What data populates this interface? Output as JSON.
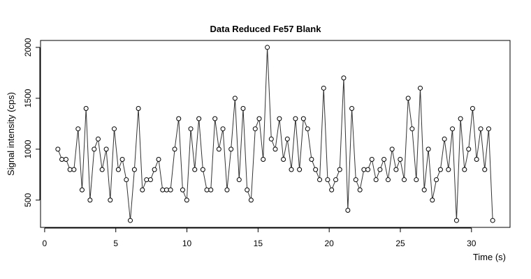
{
  "chart_data": {
    "type": "line",
    "title": "Data Reduced Fe57 Blank",
    "x_label": "Time (s)",
    "y_label": "Signal intensity (cps)",
    "x": [
      0.93,
      1.21,
      1.5,
      1.78,
      2.06,
      2.35,
      2.63,
      2.91,
      3.19,
      3.48,
      3.76,
      4.04,
      4.33,
      4.61,
      4.89,
      5.18,
      5.46,
      5.74,
      6.02,
      6.31,
      6.59,
      6.87,
      7.16,
      7.44,
      7.72,
      8.01,
      8.29,
      8.57,
      8.85,
      9.14,
      9.42,
      9.7,
      9.99,
      10.27,
      10.55,
      10.84,
      11.12,
      11.4,
      11.68,
      11.97,
      12.25,
      12.53,
      12.82,
      13.1,
      13.38,
      13.67,
      13.95,
      14.23,
      14.51,
      14.8,
      15.08,
      15.36,
      15.65,
      15.93,
      16.21,
      16.5,
      16.78,
      17.06,
      17.34,
      17.63,
      17.91,
      18.19,
      18.48,
      18.76,
      19.04,
      19.33,
      19.61,
      19.89,
      20.17,
      20.46,
      20.74,
      21.02,
      21.31,
      21.59,
      21.87,
      22.16,
      22.44,
      22.72,
      23,
      23.29,
      23.57,
      23.85,
      24.14,
      24.42,
      24.7,
      24.99,
      25.27,
      25.55,
      25.83,
      26.12,
      26.4,
      26.68,
      26.97,
      27.25,
      27.53,
      27.82,
      28.1,
      28.38,
      28.66,
      28.95,
      29.23,
      29.51,
      29.8,
      30.08,
      30.36,
      30.65,
      30.93,
      31.21,
      31.49
    ],
    "values": [
      1000,
      900,
      900,
      800,
      800,
      1200,
      600,
      1400,
      500,
      1000,
      1100,
      800,
      1000,
      500,
      1200,
      800,
      900,
      700,
      300,
      800,
      1400,
      600,
      700,
      700,
      800,
      900,
      600,
      600,
      600,
      1000,
      1300,
      600,
      500,
      1200,
      800,
      1300,
      800,
      600,
      600,
      1300,
      1000,
      1200,
      600,
      1000,
      1500,
      700,
      1400,
      600,
      500,
      1200,
      1300,
      900,
      2000,
      1100,
      1000,
      1300,
      900,
      1100,
      800,
      1300,
      800,
      1300,
      1200,
      900,
      800,
      700,
      1600,
      700,
      600,
      700,
      800,
      1700,
      400,
      1400,
      700,
      600,
      800,
      800,
      900,
      700,
      800,
      900,
      700,
      1000,
      800,
      900,
      700,
      1500,
      1200,
      700,
      1600,
      600,
      1000,
      500,
      700,
      800,
      1100,
      800,
      1200,
      300,
      1300,
      800,
      1000,
      1400,
      900,
      1200,
      800,
      1200,
      300
    ],
    "color": "#333333",
    "marker_fill": "#ffffff",
    "xlim": [
      -0.29,
      32.71
    ],
    "xticks": [
      0,
      5,
      10,
      15,
      20,
      25,
      30
    ],
    "ylim": [
      232,
      2068
    ],
    "yticks": [
      500,
      1000,
      1500,
      2000
    ]
  }
}
